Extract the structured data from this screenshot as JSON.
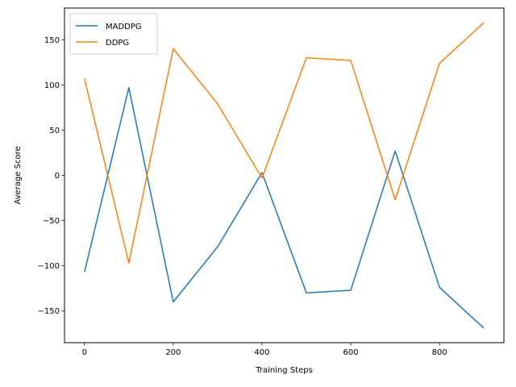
{
  "chart_data": {
    "type": "line",
    "title": "",
    "xlabel": "Training Steps",
    "ylabel": "Average Score",
    "xlim": [
      -45,
      945
    ],
    "ylim": [
      -185,
      185
    ],
    "xticks": [
      0,
      200,
      400,
      600,
      800
    ],
    "yticks": [
      -150,
      -100,
      -50,
      0,
      50,
      100,
      150
    ],
    "xtick_labels": [
      "0",
      "200",
      "400",
      "600",
      "800"
    ],
    "ytick_labels": [
      "−150",
      "−100",
      "−50",
      "0",
      "50",
      "100",
      "150"
    ],
    "grid": false,
    "legend_position": "upper-left",
    "x": [
      0,
      100,
      200,
      300,
      400,
      500,
      600,
      700,
      800,
      900
    ],
    "series": [
      {
        "name": "MADDPG",
        "color": "#1f77b4",
        "values": [
          -107,
          97,
          -140,
          -79,
          3,
          -130,
          -127,
          27,
          -124,
          -169
        ]
      },
      {
        "name": "DDPG",
        "color": "#ff7f0e",
        "values": [
          107,
          -97,
          140,
          79,
          -3,
          130,
          127,
          -27,
          124,
          169
        ]
      }
    ]
  }
}
